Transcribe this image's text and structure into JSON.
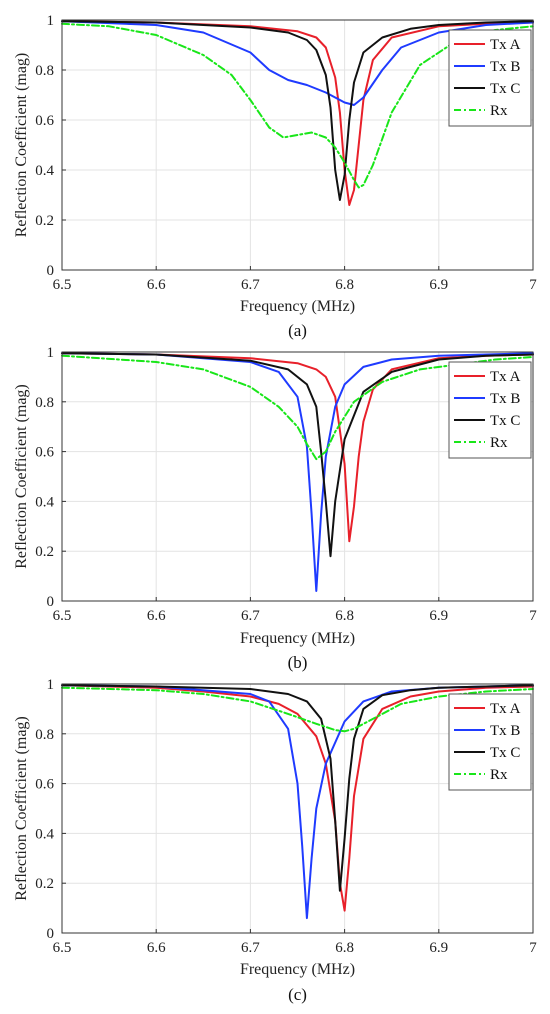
{
  "chart_data": [
    {
      "type": "line",
      "panel_label": "(a)",
      "xlabel": "Frequency (MHz)",
      "ylabel": "Reflection Coefficient (mag)",
      "xlim": [
        6.5,
        7.0
      ],
      "ylim": [
        0,
        1
      ],
      "x_ticks": [
        "6.5",
        "6.6",
        "6.7",
        "6.8",
        "6.9",
        "7"
      ],
      "y_ticks": [
        "0",
        "0.2",
        "0.4",
        "0.6",
        "0.8",
        "1"
      ],
      "grid": true,
      "legend_position": "top-right",
      "series": [
        {
          "name": "Tx A",
          "color": "#e8202a",
          "dash": "solid",
          "x": [
            6.5,
            6.6,
            6.7,
            6.75,
            6.77,
            6.78,
            6.79,
            6.795,
            6.8,
            6.805,
            6.81,
            6.815,
            6.82,
            6.83,
            6.85,
            6.9,
            6.95,
            7.0
          ],
          "y": [
            0.995,
            0.99,
            0.975,
            0.955,
            0.93,
            0.89,
            0.77,
            0.63,
            0.4,
            0.26,
            0.32,
            0.5,
            0.68,
            0.84,
            0.93,
            0.975,
            0.985,
            0.99
          ]
        },
        {
          "name": "Tx B",
          "color": "#1f3bff",
          "dash": "solid",
          "x": [
            6.5,
            6.6,
            6.65,
            6.7,
            6.72,
            6.74,
            6.76,
            6.78,
            6.8,
            6.81,
            6.82,
            6.84,
            6.86,
            6.9,
            6.95,
            7.0
          ],
          "y": [
            0.995,
            0.98,
            0.95,
            0.87,
            0.8,
            0.76,
            0.74,
            0.71,
            0.67,
            0.66,
            0.69,
            0.8,
            0.89,
            0.95,
            0.98,
            0.99
          ]
        },
        {
          "name": "Tx C",
          "color": "#111111",
          "dash": "solid",
          "x": [
            6.5,
            6.6,
            6.7,
            6.74,
            6.76,
            6.77,
            6.78,
            6.785,
            6.79,
            6.795,
            6.8,
            6.805,
            6.81,
            6.82,
            6.84,
            6.87,
            6.9,
            6.95,
            7.0
          ],
          "y": [
            0.995,
            0.99,
            0.97,
            0.95,
            0.92,
            0.88,
            0.78,
            0.65,
            0.4,
            0.28,
            0.38,
            0.6,
            0.75,
            0.87,
            0.93,
            0.965,
            0.98,
            0.99,
            0.995
          ]
        },
        {
          "name": "Rx",
          "color": "#19e619",
          "dash": "dashed",
          "x": [
            6.5,
            6.55,
            6.6,
            6.65,
            6.68,
            6.7,
            6.72,
            6.735,
            6.75,
            6.765,
            6.78,
            6.79,
            6.8,
            6.81,
            6.815,
            6.82,
            6.83,
            6.85,
            6.88,
            6.92,
            6.96,
            7.0
          ],
          "y": [
            0.985,
            0.975,
            0.94,
            0.86,
            0.78,
            0.68,
            0.57,
            0.53,
            0.54,
            0.55,
            0.53,
            0.49,
            0.43,
            0.36,
            0.33,
            0.34,
            0.42,
            0.63,
            0.82,
            0.92,
            0.96,
            0.975
          ]
        }
      ]
    },
    {
      "type": "line",
      "panel_label": "(b)",
      "xlabel": "Frequency (MHz)",
      "ylabel": "Reflection Coefficient (mag)",
      "xlim": [
        6.5,
        7.0
      ],
      "ylim": [
        0,
        1
      ],
      "x_ticks": [
        "6.5",
        "6.6",
        "6.7",
        "6.8",
        "6.9",
        "7"
      ],
      "y_ticks": [
        "0",
        "0.2",
        "0.4",
        "0.6",
        "0.8",
        "1"
      ],
      "grid": true,
      "legend_position": "top-right",
      "series": [
        {
          "name": "Tx A",
          "color": "#e8202a",
          "dash": "solid",
          "x": [
            6.5,
            6.6,
            6.7,
            6.75,
            6.77,
            6.78,
            6.79,
            6.8,
            6.805,
            6.81,
            6.815,
            6.82,
            6.83,
            6.85,
            6.9,
            6.95,
            7.0
          ],
          "y": [
            0.995,
            0.99,
            0.975,
            0.955,
            0.93,
            0.9,
            0.82,
            0.55,
            0.24,
            0.38,
            0.58,
            0.72,
            0.85,
            0.93,
            0.975,
            0.985,
            0.99
          ]
        },
        {
          "name": "Tx B",
          "color": "#1f3bff",
          "dash": "solid",
          "x": [
            6.5,
            6.6,
            6.7,
            6.73,
            6.75,
            6.76,
            6.765,
            6.77,
            6.775,
            6.78,
            6.79,
            6.8,
            6.82,
            6.85,
            6.9,
            6.95,
            7.0
          ],
          "y": [
            0.995,
            0.99,
            0.96,
            0.92,
            0.82,
            0.62,
            0.35,
            0.04,
            0.35,
            0.58,
            0.78,
            0.87,
            0.94,
            0.97,
            0.985,
            0.99,
            0.995
          ]
        },
        {
          "name": "Tx C",
          "color": "#111111",
          "dash": "solid",
          "x": [
            6.5,
            6.6,
            6.7,
            6.74,
            6.76,
            6.77,
            6.775,
            6.78,
            6.785,
            6.79,
            6.8,
            6.82,
            6.85,
            6.9,
            6.95,
            7.0
          ],
          "y": [
            0.995,
            0.99,
            0.965,
            0.93,
            0.87,
            0.78,
            0.6,
            0.4,
            0.18,
            0.4,
            0.65,
            0.84,
            0.92,
            0.97,
            0.985,
            0.99
          ]
        },
        {
          "name": "Rx",
          "color": "#19e619",
          "dash": "dashed",
          "x": [
            6.5,
            6.6,
            6.65,
            6.7,
            6.73,
            6.75,
            6.76,
            6.77,
            6.78,
            6.79,
            6.81,
            6.84,
            6.88,
            6.92,
            6.96,
            7.0
          ],
          "y": [
            0.985,
            0.96,
            0.93,
            0.86,
            0.78,
            0.7,
            0.63,
            0.57,
            0.6,
            0.68,
            0.8,
            0.88,
            0.93,
            0.95,
            0.97,
            0.98
          ]
        }
      ]
    },
    {
      "type": "line",
      "panel_label": "(c)",
      "xlabel": "Frequency (MHz)",
      "ylabel": "Reflection Coefficient (mag)",
      "xlim": [
        6.5,
        7.0
      ],
      "ylim": [
        0,
        1
      ],
      "x_ticks": [
        "6.5",
        "6.6",
        "6.7",
        "6.8",
        "6.9",
        "7"
      ],
      "y_ticks": [
        "0",
        "0.2",
        "0.4",
        "0.6",
        "0.8",
        "1"
      ],
      "grid": true,
      "legend_position": "top-right",
      "series": [
        {
          "name": "Tx A",
          "color": "#e8202a",
          "dash": "solid",
          "x": [
            6.5,
            6.6,
            6.65,
            6.7,
            6.73,
            6.75,
            6.77,
            6.78,
            6.79,
            6.795,
            6.8,
            6.805,
            6.81,
            6.82,
            6.84,
            6.87,
            6.9,
            6.95,
            7.0
          ],
          "y": [
            0.995,
            0.985,
            0.97,
            0.95,
            0.92,
            0.88,
            0.79,
            0.68,
            0.45,
            0.2,
            0.09,
            0.3,
            0.55,
            0.78,
            0.9,
            0.95,
            0.97,
            0.985,
            0.99
          ]
        },
        {
          "name": "Tx B",
          "color": "#1f3bff",
          "dash": "solid",
          "x": [
            6.5,
            6.6,
            6.7,
            6.72,
            6.74,
            6.75,
            6.755,
            6.76,
            6.765,
            6.77,
            6.78,
            6.8,
            6.82,
            6.85,
            6.9,
            6.95,
            7.0
          ],
          "y": [
            0.995,
            0.99,
            0.96,
            0.93,
            0.82,
            0.6,
            0.35,
            0.06,
            0.3,
            0.5,
            0.68,
            0.85,
            0.93,
            0.97,
            0.985,
            0.99,
            0.995
          ]
        },
        {
          "name": "Tx C",
          "color": "#111111",
          "dash": "solid",
          "x": [
            6.5,
            6.6,
            6.7,
            6.74,
            6.76,
            6.775,
            6.785,
            6.79,
            6.795,
            6.8,
            6.805,
            6.81,
            6.82,
            6.84,
            6.87,
            6.9,
            6.95,
            7.0
          ],
          "y": [
            0.995,
            0.99,
            0.98,
            0.96,
            0.93,
            0.86,
            0.7,
            0.45,
            0.17,
            0.38,
            0.62,
            0.78,
            0.9,
            0.955,
            0.975,
            0.985,
            0.99,
            0.995
          ]
        },
        {
          "name": "Rx",
          "color": "#19e619",
          "dash": "dashed",
          "x": [
            6.5,
            6.6,
            6.65,
            6.7,
            6.74,
            6.77,
            6.79,
            6.8,
            6.81,
            6.83,
            6.86,
            6.9,
            6.95,
            7.0
          ],
          "y": [
            0.985,
            0.975,
            0.96,
            0.93,
            0.88,
            0.84,
            0.815,
            0.81,
            0.82,
            0.86,
            0.92,
            0.95,
            0.97,
            0.98
          ]
        }
      ]
    }
  ]
}
